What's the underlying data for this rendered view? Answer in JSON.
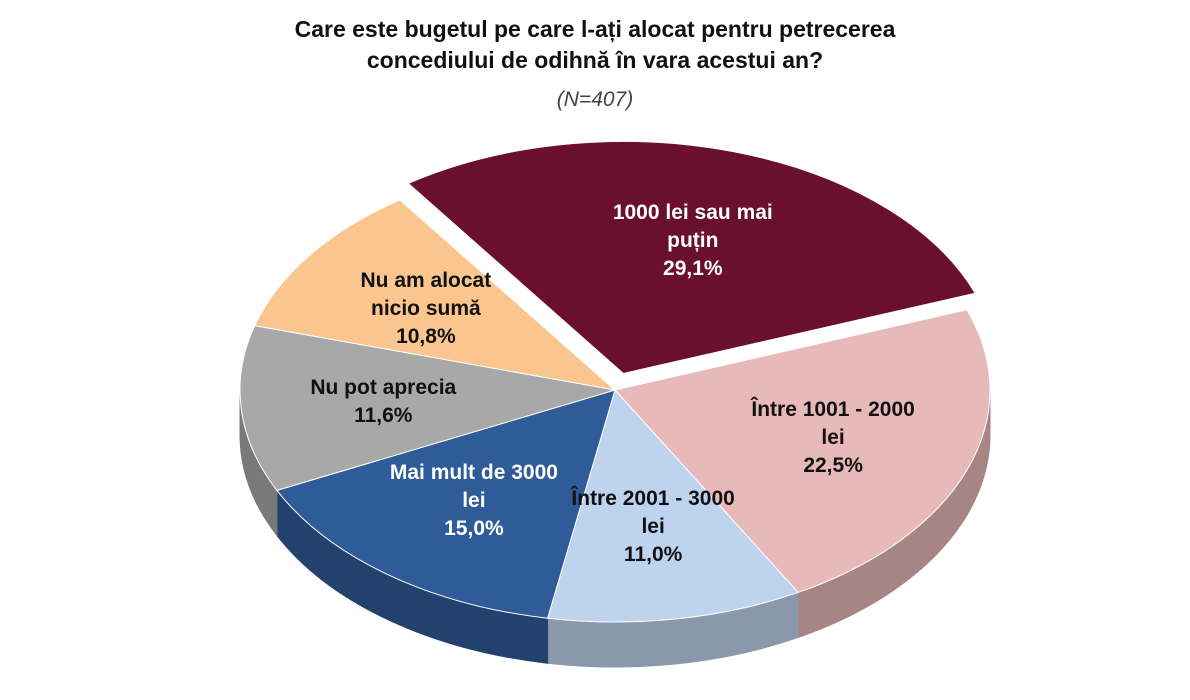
{
  "chart_data": {
    "type": "pie",
    "title": "Care este bugetul pe care l-ați alocat pentru petrecerea concediului de odihnă în vara acestui an?",
    "subtitle": "(N=407)",
    "categories": [
      "1000 lei sau mai puțin",
      "Între 1001 - 2000 lei",
      "Între 2001 - 3000 lei",
      "Mai mult de 3000 lei",
      "Nu pot aprecia",
      "Nu am alocat nicio sumă"
    ],
    "values": [
      29.1,
      22.5,
      11.0,
      15.0,
      11.6,
      10.8
    ],
    "value_labels": [
      "29,1%",
      "22,5%",
      "11,0%",
      "15,0%",
      "11,6%",
      "10,8%"
    ],
    "colors": [
      "#6b0f2e",
      "#e8b9b9",
      "#bed3ee",
      "#2f5b98",
      "#a8a8a8",
      "#fbc590"
    ]
  }
}
